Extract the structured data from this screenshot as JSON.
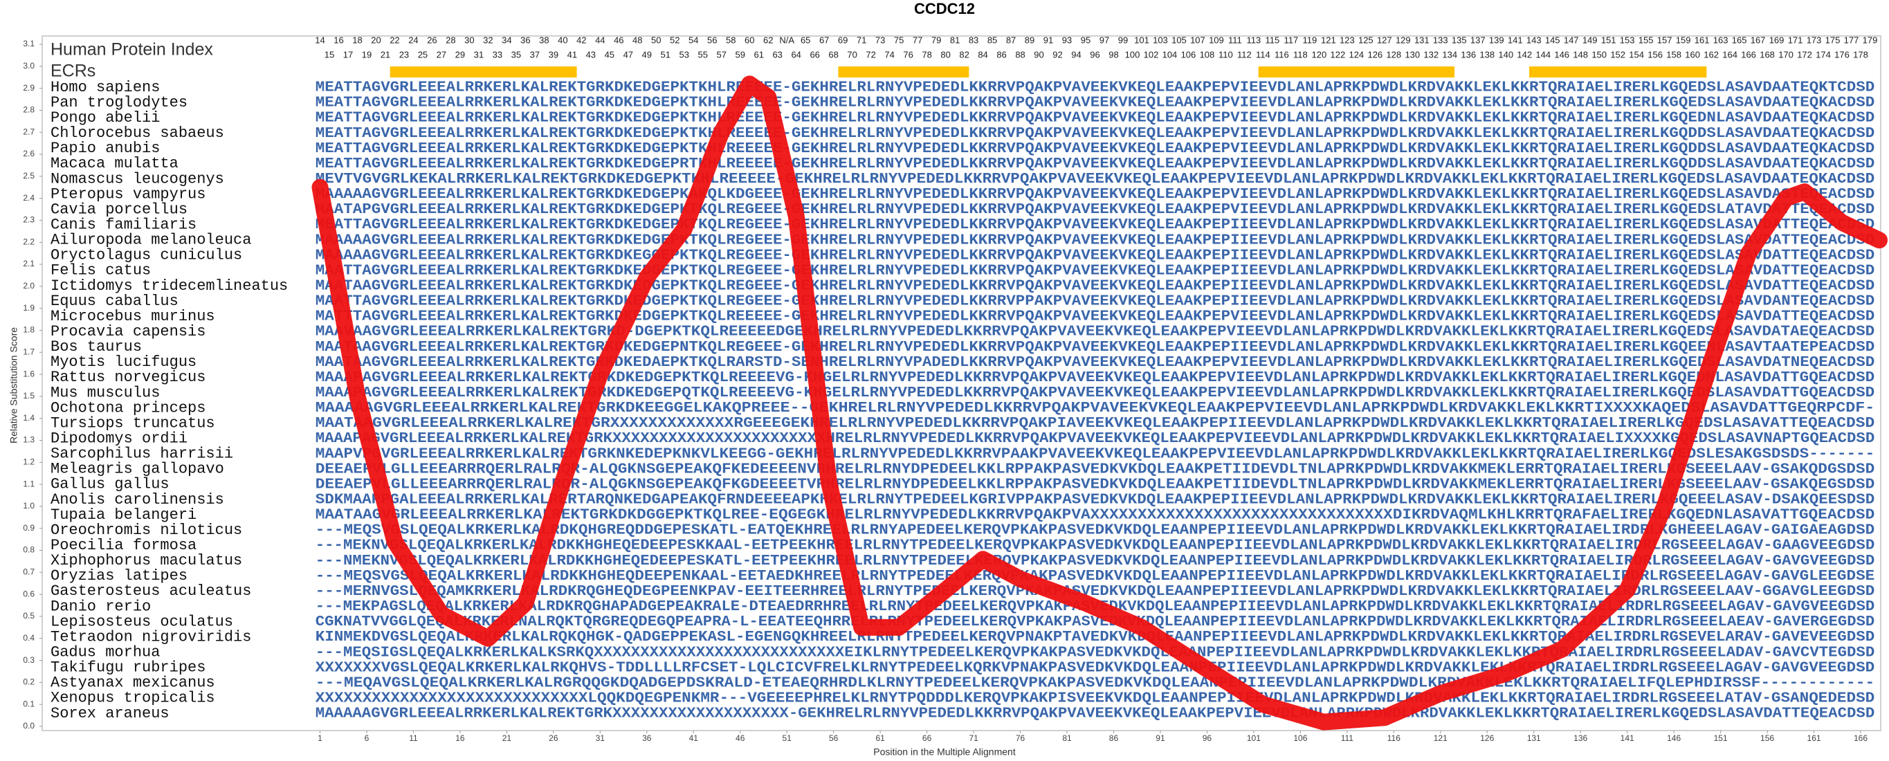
{
  "chart_data": {
    "type": "line",
    "title": "CCDC12",
    "xlabel": "Position in the Multiple Alignment",
    "ylabel": "Relative Substitution Score",
    "xlim": [
      0,
      168
    ],
    "ylim": [
      0,
      3.1
    ],
    "xticks": [
      1,
      6,
      11,
      16,
      21,
      26,
      31,
      36,
      41,
      46,
      51,
      56,
      61,
      66,
      71,
      76,
      81,
      86,
      91,
      96,
      101,
      106,
      111,
      116,
      121,
      126,
      131,
      136,
      141,
      146,
      151,
      156,
      161,
      166
    ],
    "yticks": [
      {
        "value": 0,
        "label": "0.0"
      },
      0.1,
      0.2,
      0.3,
      0.4,
      0.5,
      0.6,
      0.7,
      0.8,
      0.9,
      {
        "value": 1,
        "label": "1.0"
      },
      1.1,
      1.2,
      1.3,
      1.4,
      1.5,
      1.6,
      1.7,
      1.8,
      1.9,
      {
        "value": 2,
        "label": "2.0"
      },
      2.1,
      2.2,
      2.3,
      2.4,
      2.5,
      2.6,
      2.7,
      2.8,
      2.9,
      {
        "value": 3,
        "label": "3.0"
      },
      3.1
    ],
    "color": "#ee1111",
    "x": [
      1,
      5,
      9,
      14,
      19,
      23,
      27,
      31,
      36,
      40,
      44,
      47,
      49,
      52,
      55.5,
      59,
      63,
      68,
      72,
      76,
      83,
      89,
      96,
      102,
      108.5,
      115,
      121,
      128,
      134,
      141,
      145,
      150,
      154,
      158,
      160,
      164,
      168
    ],
    "values": [
      2.45,
      1.5,
      0.84,
      0.51,
      0.4,
      0.56,
      1.11,
      1.6,
      2.04,
      2.26,
      2.7,
      2.92,
      2.86,
      2.32,
      1.11,
      0.45,
      0.45,
      0.62,
      0.76,
      0.67,
      0.56,
      0.45,
      0.26,
      0.1,
      0.02,
      0.04,
      0.15,
      0.24,
      0.35,
      0.62,
      1.0,
      1.66,
      2.15,
      2.4,
      2.43,
      2.29,
      2.21
    ],
    "ecr_color": "#ffc000",
    "ecr_ranges": [
      [
        8.5,
        28.5
      ],
      [
        56.5,
        70.5
      ],
      [
        101.5,
        122.5
      ],
      [
        130.5,
        149.5
      ]
    ]
  },
  "alignment": {
    "index_title": "Human Protein Index",
    "ecr_label": "ECRs",
    "index_top": [
      14,
      16,
      18,
      20,
      22,
      24,
      26,
      28,
      30,
      32,
      34,
      36,
      38,
      40,
      42,
      44,
      46,
      48,
      50,
      52,
      54,
      56,
      58,
      60,
      62,
      "N/A",
      65,
      67,
      69,
      71,
      73,
      75,
      77,
      79,
      81,
      83,
      85,
      87,
      89,
      91,
      93,
      95,
      97,
      99,
      101,
      103,
      105,
      107,
      109,
      111,
      113,
      115,
      117,
      119,
      121,
      123,
      125,
      127,
      129,
      131,
      133,
      135,
      137,
      139,
      141,
      143,
      145,
      147,
      149,
      151,
      153,
      155,
      157,
      159,
      161,
      163,
      165,
      167,
      169,
      171,
      173,
      175,
      177,
      179
    ],
    "index_bottom": [
      15,
      17,
      19,
      21,
      23,
      25,
      27,
      29,
      31,
      33,
      35,
      37,
      39,
      41,
      43,
      45,
      47,
      49,
      51,
      53,
      55,
      57,
      59,
      61,
      63,
      64,
      66,
      68,
      70,
      72,
      74,
      76,
      78,
      80,
      82,
      84,
      86,
      88,
      90,
      92,
      94,
      96,
      98,
      100,
      102,
      104,
      106,
      108,
      110,
      112,
      114,
      116,
      118,
      120,
      122,
      124,
      126,
      128,
      130,
      132,
      134,
      136,
      138,
      140,
      142,
      144,
      146,
      148,
      150,
      152,
      154,
      156,
      158,
      160,
      162,
      164,
      166,
      168,
      170,
      172,
      174,
      176,
      178
    ],
    "rows": [
      {
        "species": "Homo sapiens",
        "sequence": "MEATTAGVGRLEEEALRRKERLKALREKTGRKDKEDGEPKTKHLREEEEE-GEKHRELRLRNYVPEDEDLKKRRVPQAKPVAVEEKVKEQLEAAKPEPVIEEVDLANLAPRKPDWDLKRDVAKKLEKLKKRTQRAIAELIRERLKGQEDSLASAVDAATEQKTCDSD"
      },
      {
        "species": "Pan troglodytes",
        "sequence": "MEATTAGVGRLEEEALRRKERLKALREKTGRKDKEDGEPKTKHLREEEEE-GEKHRELRLRNYVPEDEDLKKRRVPQAKPVAVEEKVKEQLEAAKPEPVIEEVDLANLAPRKPDWDLKRDVAKKLEKLKKRTQRAIAELIRERLKGQEDSLASAVDAATEQKACDSD"
      },
      {
        "species": "Pongo abelii",
        "sequence": "MEATTAGVGRLEEEALRRKERLKALREKTGRKDKEDGEPKTKHLREEEEE-GEKHRELRLRNYVPEDEDLKKRRVPQAKPVAVEEKVKEQLEAAKPEPVIEEVDLANLAPRKPDWDLKRDVAKKLEKLKKRTQRAIAELIRERLKGQEDNLASAVDAATEQKACDSD"
      },
      {
        "species": "Chlorocebus sabaeus",
        "sequence": "MEATTAGVGRLEEEALRRKERLKALREKTGRKDKEDGEPKTKHLREEEEE-GEKHRELRLRNYVPEDEDLKKRRVPQAKPVAVEEKVKEQLEAAKPEPVIEEVDLANLAPRKPDWDLKRDVAKKLEKLKKRTQRAIAELIRERLKGQDDSLASAVDAATEQKACDSD"
      },
      {
        "species": "Papio anubis",
        "sequence": "MEATTAGVGRLEEEALRRKERLKALREKTGRKDKEDGEPKTKHLREEEEE-GEKHRELRLRNYVPEDEDLKKRRVPQAKPVAVEEKVKEQLEAAKPEPVIEEVDLANLAPRKPDWDLKRDVAKKLEKLKKRTQRAIAELIRERLKGQDDSLASAVDAATEQKACDSD"
      },
      {
        "species": "Macaca mulatta",
        "sequence": "MEATTAGVGRLEEEALRRKERLKALREKTGRKDKEDGEPRTKHLREEEEE-GEKHRELRLRNYVPEDEDLKKRRVPQAKPVAVEEKVKEQLEAAKPEPVIEEVDLANLAPRKPDWDLKRDVAKKLEKLKKRTQRAIAELIRERLKGQDDSLASAVDAATEQKACDSD"
      },
      {
        "species": "Nomascus leucogenys",
        "sequence": "MEVTVGVGRLKEKALRRKERLKALREKTGRKDKEDGEPKTKHLREEEEE-GEKHRELRLRNYVPEDEDLKKRRVPQAKPVAVEEKVKEQLEAAKPEPVIEEVDLANLAPRKPDWDLKRDVAKKLEKLKKRTQRAIAELIRERLKGQEDSLASAVDAATEQKACDSD"
      },
      {
        "species": "Pteropus vampyrus",
        "sequence": "MAAAAAGVGRLEEEALRRKERLKALREKTGRKDKEDGEPKAKQLKDGEEE-GEKHRELRLRNYVPEDEDLKKRRVPQAKPVAVEEKVKEQLEAAKPEPVIEEVDLANLAPRKPDWDLKRDVAKKLEKLKKRTQRAIAELIRERLKGQEDSLASAVDASTEQEACDSD"
      },
      {
        "species": "Cavia porcellus",
        "sequence": "MAATAPGVGRLEEEALRRKERLKALREKTGRKDKEDGEPKTKQLREGEEE-GEKHRELRLRNYVPEDEDLKKRRVPQAKPVAVEEKVKEQLEAAKPEPVIEEVDLANLAPRKPDWDLKRDVAKKLEKLKKRTQRAIAELIRERLKGQEDSLATAVDATTEQEACDSD"
      },
      {
        "species": "Canis familiaris",
        "sequence": "MEATTAGVGRLEEEALRRKERLKALREKTGRKDKEDGEPKTKQLREGEEE-GEKHRELRLRNYVPEDEDLKKRRVPQAKPVAVEEKVKEQLEAAKPEPIIEEVDLANLAPRKPDWDLKRDVAKKLEKLKKRTQRAIAELIRERLKGQEDSLASAVDATTEQEACDSD"
      },
      {
        "species": "Ailuropoda melanoleuca",
        "sequence": "MAAAAAGVGRLEEEALRRKERLKALREKTGRKDKEDGEPKTKQLREGEEE-GEKHRELRLRNYVPEDEDLKKRRVPQAKPVAVEEKVKEQLEAAKPEPIIEEVDLANLAPRKPDWDLKRDVAKKLEKLKKRTQRAIAELIRERLKGQEDSLASAVDATTEQEACDSD"
      },
      {
        "species": "Oryctolagus cuniculus",
        "sequence": "MAAAAAGVGRLEEEALRRKERLKALREKTGRKDKEGGEPKTKQLREGEEE-GEKHRELRLRNYVPEDEDLKKRRVPQAKPVAVEEKVKEQLEAAKPEPIIEEVDLANLAPRKPDWDLKRDVAKKLEKLKKRTQRAIAELIRERLKGQEDSLASAVDATTEQEACDSD"
      },
      {
        "species": "Felis catus",
        "sequence": "MAATTAGVGRLEEEALRRKERLKALREKTGRKDKEDGEPKTKQLREGEEE-GEKHRELRLRNYVPEDEDLKKRRVPQAKPVAVEEKVKEQLEAAKPEPIIEEVDLANLAPRKPDWDLKRDVAKKLEKLKKRTQRAIAELIRERLKGQEDSLASAVDATTEQEACDSD"
      },
      {
        "species": "Ictidomys tridecemlineatus",
        "sequence": "MAATAAGVGRLEEEALRRKERLKALREKTGRKDKEDGEPKTKQLREGEEE-GEKHRELRLRNYVPEDEDLKKRRVPQAKPVAVEEKVKEQLEAAKPEPIIEEVDLANLAPRKPDWDLKRDVAKKLEKLKKRTQRAIAELIRERLKGQEDSLASAVDATTEQEACDSD"
      },
      {
        "species": "Equus caballus",
        "sequence": "MAATTAGVGRLEEEALRRKERLKALREKTGRKDKEDGEPKTKQLREGEEE-GEKHRELRLRNYVPEDEDLKKRRVPPAKPVAVEEKVKEQLEAAKPEPIIEEVDLANLAPRKPDWDLKRDVAKKLEKLKKRTQRAIAELIRERLKGQEDSLASAVDANTEQEACDSD"
      },
      {
        "species": "Microcebus murinus",
        "sequence": "MATTTAGVGRLEEEALRRKERLKALREKTGRKDKEDGEPKTKQLREEEEE-GEKHRELRLRNYVPEDEDLKKRRVPQAKPVAVEEKVKEQLEAAKPEPVIEEVDLANLAPRKPDWDLKRDVAKKLEKLKKRTQRAIAELIRERLKGQEDSLASAVDATTEQEACDSD"
      },
      {
        "species": "Procavia capensis",
        "sequence": "MAAVAAGVGRLEEEALRRKERLKALREKTGRKD-DGEPKTKQLREEEEEDGEKHRELRLRNYVPEDEDLKKRRVPQAKPVAVEEKVKEQLEAAKPEPVIEEVDLANLAPRKPDWDLKRDVAKKLEKLKKRTQRAIAELIRERLKGQEDSLASAVDATAEQEACDSD"
      },
      {
        "species": "Bos taurus",
        "sequence": "MAATAAGVGRLEEEALRRKERLKALREKTGRKDKEDGEPNTKQLREGEEE-GEKHRELRLRNYVPEDEDLKKRRVPQAKPVAVEEKVKEQLEAAKPEPIIEEVDLANLAPRKPDWDLKRDVAKKLEKLKKRTQRAIAELIRERLKGQEENLASAVTAATEPEACDSD"
      },
      {
        "species": "Myotis lucifugus",
        "sequence": "MAATAAGVGRLEEEALRRKERLKALREKTGRKDKEDAEPKTKQLRARSTD-SENHRELRLRNYVPADEDLKKRRVPQAKPVAVEEKVKEQLEAAKPEPVIEEVDLANLAPRKPDWDLKRDVAKKLEKLKKRTQRAIAELIRERLKGQEDSLASAVDATNEQEACDSD"
      },
      {
        "species": "Rattus norvegicus",
        "sequence": "MAAAPAGVGRLEEEALRRKERLKALREKTGRKDKEDGEPKTKQLREEEEVG-KHGELRLRNYVPEDEDLKKRRVPQAKPVAVEEKVKEQLEAAKPEPVIEEVDLANLAPRKPDWDLKRDVAKKLEKLKKRTQRAIAELIRERLKGQEDNLASAVDATTGQEACDSD"
      },
      {
        "species": "Mus musculus",
        "sequence": "MAAAPAGVGRLEEEALRRKERLKALREKTGRKDKEDGEPQTKQLREEEEVG-KHGELRLRNYVPEDEDLKKRRVPQAKPVAVEEKVKEQLEAAKPEPVIEEVDLANLAPRKPDWDLKRDVAKKLEKLKKRTQRAIAELIRERLKGQEDSLASAVDATTGQEACDSD"
      },
      {
        "species": "Ochotona princeps",
        "sequence": "MAAAAAGVGRLEEEALRRKERLKALREKTGRKDKEEGGELKAKQPREEE--GEKHRELRLRNYVPEDEDLKKRRVPQAKPVAVEEKVKEQLEAAKPEPVIEEVDLANLAPRKPDWDLKRDVAKKLEKLKKRTIXXXXKAQEDSLASAVDATTGEQRPCDF-"
      },
      {
        "species": "Tursiops truncatus",
        "sequence": "MAATAAGVGRLEEEALRRKERLKALREKTGRXXXXXXXXXXXXXRGEEEGEKHRELRLRNYVPEDEDLKKRRVPQAKPIAVEEKVKEQLEAAKPEPIIEEVDLANLAPRKPDWDLKRDVAKKLEKLKKRTQRAIAELIRERLKGQEDSLASAVATTEQEACDSD"
      },
      {
        "species": "Dipodomys ordii",
        "sequence": "MAAAPAGVGRLEEEALRRKERLKALREKTGRKXXXXXXXXXXXXXXXXXXXXXXXHRELRLRNYVPEDEDLKKRRVPQAKPVAVEEKVKEQLEAAKPEPVIEEVDLANLAPRKPDWDLKRDVAKKLEKLKKRTQRAIAELIXXXXKGQEDSLASAVNAPTGQEACDSD"
      },
      {
        "species": "Sarcophilus harrisii",
        "sequence": "MAAPVPGVGRLEEEALRRKERLKALREKTGRKNKEDEPKNKVLKEEGG-GEKHRELRLRNYVPEDEDLKKRRVPAAKPVAVEEKVKEQLEAAKPEPVIEEVDLANLAPRKPDWDLKRDVAKKLEKLKKRTQRAIAELIRERLKGQEDSLESAKGSDSDS-------"
      },
      {
        "species": "Meleagris gallopavo",
        "sequence": "DEEAEPVLGLLEEEARRRQERLRALRQR-ALQGKNSGEPEAKQFKEDEEEENVRHRELRLRNYDPEDEELKKLRPPAKPASVEDKVKDQLEAAKPETIIDEVDLTNLAPRKPDWDLKRDVAKKMEKLERRTQRAIAELIRERLKGSEEELAAV-GSAKQDGSDSD"
      },
      {
        "species": "Gallus gallus",
        "sequence": "DEEAEPVLGLLEEEARRRQERLRALRQR-ALQGKNSGEPEAKQFKGDEEEETVRHRELRLRNYDPEDEELKKLRPPAKPASVEDKVKDQLEAAKPETIIDEVDLTNLAPRKPDWDLKRDVAKKMEKLERRTQRAIAELIRERLKGSEEELAAV-GSAKQEGSDSD"
      },
      {
        "species": "Anolis carolinensis",
        "sequence": "SDKMAAPPGALEEEALRRKERLKALRERTARQNKEDGAPEAKQFRNDEEEEAPKHKELRLRNYTPEDEELKGRIVPPAKPASVEDKVKDQLEAAKPEPIIEEVDLANLAPRKPDWDLKRDVAKKLEKLKKRTQRAIAELIRERLKGQEEELASAV-DSAKQEESDSD"
      },
      {
        "species": "Tupaia belangeri",
        "sequence": "MAATAAGVGRLEEEALRRKERLKALREKTGRKDKDGGEPKTKQLREE-EQGEGKHRELRLRNYVPEDEDLKKRRVPQAKPVAXXXXXXXXXXXXXXXXXXXXXXXXXXXXXXXXDIKRDVAQMLKHLKRRTQRAFAELIRERLKGQEDNLASAVATTGQEACDSD"
      },
      {
        "species": "Oreochromis niloticus",
        "sequence": "---MEQSVGSLQEQALKRKERLKALRDKQHGREQDDGEPESKATL-EATQEKHREELRLRNYAPEDEELKERQVPKAKPASVEDKVKDQLEAANPEPIIEEVDLANLAPRKPDWDLKRDVAKKLEKLKKRTQRAIAELIRDRLKGHEEELAGAV-GAIGAEAGDSD"
      },
      {
        "species": "Poecilia formosa",
        "sequence": "---MEKNVGSLQEQALKRKERLKALRDKKHGHEQEDEEPESKKAAL-EETPEEKHREELRLRNYTPEDEELKERQVPKAKPASVEDKVKDQLEAANPEPIIEEVDLANLAPRKPDWDLKRDVAKKLEKLKKRTQRAIAELIRDRLRGSEEELAGAV-GAAGVEEGDSD"
      },
      {
        "species": "Xiphophorus maculatus",
        "sequence": "---NMEKNVGSLQEQALKRKERLKALRDKKHGHEQEDEEPESKATL-EETPEEKHREELRLRNYTPEDEELKERQVPKAKPASVEDKVKDQLEAANPEPIIEEVDLANLAPRKPDWDLKRDVAKKLEKLKKRTQRAIAELIRDRLRGSEEELAGAV-GAVGVEEGDSD"
      },
      {
        "species": "Oryzias latipes",
        "sequence": "---MEQSVGSLQEQALKRKERLKALRDKKHGHEQDEEPENKAAL-EETAEDKHREELRLRNYTPEDEELKERQVPKAKPASVEDKVKDQLEAANPEPIIEEVDLANLAPRKPDWDLKRDVAKKLEKLKKRTQRAIAELIRDRLRGSEEELAGAV-GAVGLEEGDSE"
      },
      {
        "species": "Gasterosteus aculeatus",
        "sequence": "---MERNVGSLQEQAMKRKERLKALRDKRQGHEQDEGPEENKPAV-EEITEERHREELRLRNYTPEDEELKERQVPKAKPASVEDKVKDQLEAANPEPIIEEVDLANLAPRKPDWDLKRDVAKKLEKLKKRTQRAIAELIRDRLRGSEEELAAV-GGAVGLEEGDSD"
      },
      {
        "species": "Danio rerio",
        "sequence": "---MEKPAGSLQEQALKRKERLKALRDKRQGHAPADGEPEAKRALE-DTEAEDRRHREELRLRNYTPEDEELKERQVPKAKPASVEDKVKDQLEAANPEPIIEEVDLANLAPRKPDWDLKRDVAKKLEKLKKRTQRAIAELIRDRLRGSEEELAGAV-GAVGVEEGDSD"
      },
      {
        "species": "Lepisosteus oculatus",
        "sequence": "CGKNATVVGGLQEQALKRKERLNALRQKTQRGREQDEGQPEAPRA-L-EEATEEQHRRELRLRNYTPEDEELKERQVPKAKPASVEDKVKDQLEAANPEPIIEEVDLANLAPRKPDWDLKRDVAKKLEKLKKRTQRAIAELIRDRLRGSEEELAEAV-GAVERGEGDSD"
      },
      {
        "species": "Tetraodon nigroviridis",
        "sequence": "KINMEKDVGSLQEQALKRKERLKALRQKQHGK-QADGEPPEKASL-EGENGQKHREELRLRNYTPEDEELKERQVPNAKPTAVEDKVKDQLEAANPEPIIEEVDLANLAPRKPDWDLKRDVAKKLEKLKKRTQRAIAELIRDRLRGSEVELARAV-GAVEVEEGDSD"
      },
      {
        "species": "Gadus morhua",
        "sequence": "---MEQSIGSLQEQALKRKERLKALKSRKQXXXXXXXXXXXXXXXXXXXXXXXXXXXEIKLRNYTPEDEELKERQVPKAKPASVEDKVKDQLEAANPEPIIEEVDLANLAPRKPDWDLKRDVAKKLEKLKKRTQRAIAELIRDRLRGSEEELADAV-GAVCVTEGDSD"
      },
      {
        "species": "Takifugu rubripes",
        "sequence": "XXXXXXXVGSLQEQALKRKERLKALRKQHVS-TDDLLLLRFCSET-LQLCICVFRELKLRNYTPEDEELKQRKVPNAKPASVEDKVKDQLEAANPEPIIEEVDLANLAPRKPDWDLKRDVAKKLEKLKKRTQRAIAELIRDRLRGSEEELAGAV-GAVGVEEGDSD"
      },
      {
        "species": "Astyanax mexicanus",
        "sequence": "---MEQAVGSLQEQALKRKERLKALRGRQQGKDQADGEPDSKRALD-ETEAEQRHRDLKLRNYTPEDEELKERQVPKAKPASVEDKVKDQLEAANPEPIIEEVDLANLAPRKPDWDLKRDVAKKLEKLKKRTQRAIAELIFQLEPHDIRSSF------------"
      },
      {
        "species": "Xenopus tropicalis",
        "sequence": "XXXXXXXXXXXXXXXXXXXXXXXXXXXXXLQQKDQEGPENKMR---VGEEEEPHRELKLRNYTPQDDDLKERQVPKAKPISVEEKVKDQLEAANPEPIIEEVDLANLAPRKPDWDLKRDVAKKLEKLKKRTQRAIAELIRDRLRGSEEELATAV-GSANQEDEDSD"
      },
      {
        "species": "Sorex araneus",
        "sequence": "MAAAAAGVGRLEEEALRRKERLKALREKTGRKXXXXXXXXXXXXXXXXXXX-GEKHRELRLRNYVPEDEDLKKRRVPQAKPVAVEEKVKEQLEAAKPEPVIEEVDLANLAPRKPDWDLKRDVAKKLEKLKKRTQRAIAELIRERLKGQEDSLASAVDATTEQEACDSD"
      }
    ]
  }
}
